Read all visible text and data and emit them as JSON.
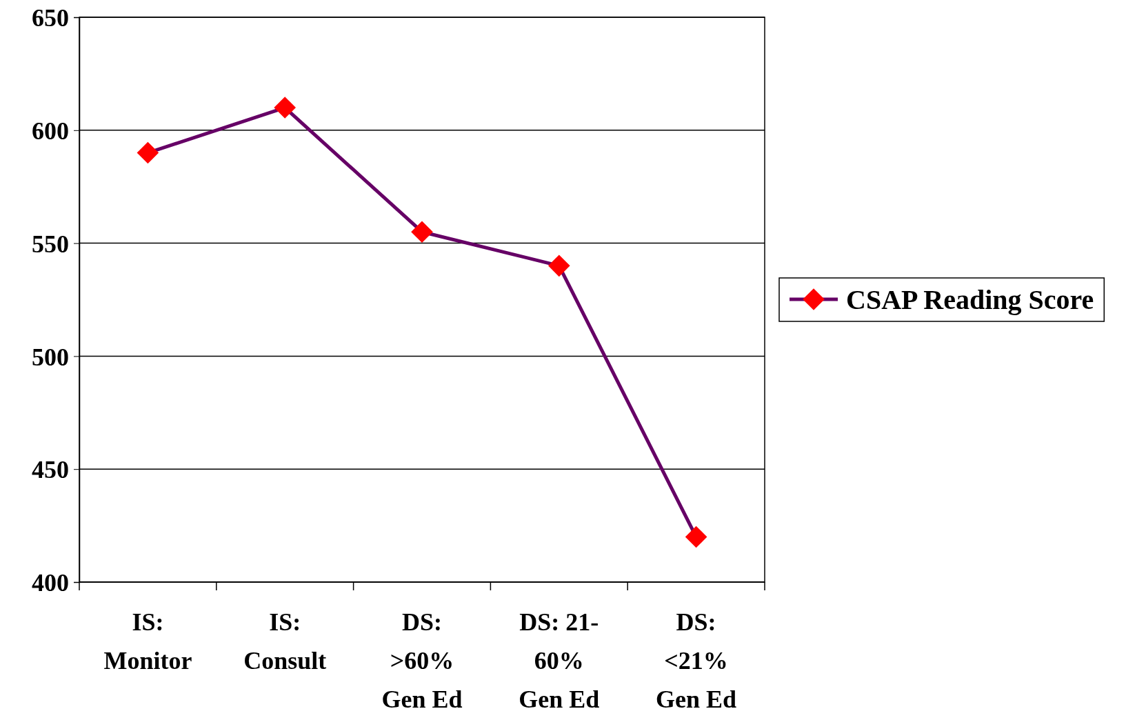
{
  "chart_data": {
    "type": "line",
    "categories": [
      "IS: Monitor",
      "IS: Consult",
      "DS: >60% Gen Ed",
      "DS: 21-60% Gen Ed",
      "DS: <21% Gen Ed"
    ],
    "series": [
      {
        "name": "CSAP Reading Score",
        "color": "#660066",
        "colors": [
          "#ff0000",
          "#ff0000",
          "#ff0000",
          "#ff0000",
          "#ff0000"
        ],
        "values": [
          590,
          610,
          555,
          540,
          420
        ]
      }
    ],
    "ylim": [
      400,
      650
    ],
    "yticks": [
      400,
      450,
      500,
      550,
      600,
      650
    ],
    "grid": "y",
    "legend": "right",
    "marker": "diamond",
    "line_style": "solid"
  }
}
